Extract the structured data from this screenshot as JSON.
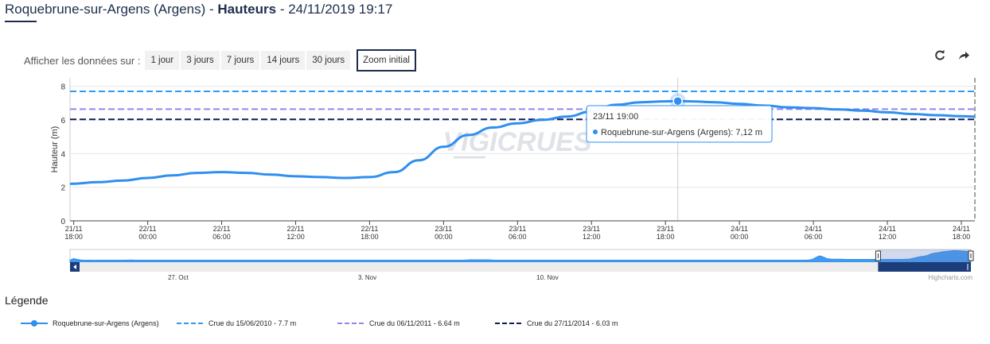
{
  "header": {
    "station": "Roquebrune-sur-Argens (Argens)",
    "sep1": " - ",
    "measure": "Hauteurs",
    "sep2": " - ",
    "datetime": "24/11/2019 19:17"
  },
  "range_selector": {
    "label": "Afficher les données sur :",
    "buttons": [
      "1 jour",
      "3 jours",
      "7 jours",
      "14 jours",
      "30 jours"
    ],
    "zoom_label": "Zoom initial"
  },
  "toolbar": {
    "refresh_icon": "refresh-icon",
    "share_icon": "share-arrow-icon"
  },
  "chart_data": {
    "type": "line",
    "ylabel": "Hauteur (m)",
    "ylim": [
      0,
      8.5
    ],
    "yticks": [
      0,
      2,
      4,
      6,
      8
    ],
    "xticks": [
      {
        "t": 0,
        "l1": "21/11",
        "l2": "18:00"
      },
      {
        "t": 6,
        "l1": "22/11",
        "l2": "00:00"
      },
      {
        "t": 12,
        "l1": "22/11",
        "l2": "06:00"
      },
      {
        "t": 18,
        "l1": "22/11",
        "l2": "12:00"
      },
      {
        "t": 24,
        "l1": "22/11",
        "l2": "18:00"
      },
      {
        "t": 30,
        "l1": "23/11",
        "l2": "00:00"
      },
      {
        "t": 36,
        "l1": "23/11",
        "l2": "06:00"
      },
      {
        "t": 42,
        "l1": "23/11",
        "l2": "12:00"
      },
      {
        "t": 48,
        "l1": "23/11",
        "l2": "18:00"
      },
      {
        "t": 54,
        "l1": "24/11",
        "l2": "00:00"
      },
      {
        "t": 60,
        "l1": "24/11",
        "l2": "06:00"
      },
      {
        "t": 66,
        "l1": "24/11",
        "l2": "12:00"
      },
      {
        "t": 72,
        "l1": "24/11",
        "l2": "18:00"
      }
    ],
    "xlim": [
      -0.3,
      73.1
    ],
    "series": [
      {
        "name": "Roquebrune-sur-Argens (Argens)",
        "color": "#2e8fef",
        "points": [
          [
            -0.3,
            2.2
          ],
          [
            2,
            2.3
          ],
          [
            4,
            2.4
          ],
          [
            6,
            2.55
          ],
          [
            8,
            2.7
          ],
          [
            10,
            2.85
          ],
          [
            12,
            2.9
          ],
          [
            14,
            2.85
          ],
          [
            16,
            2.75
          ],
          [
            18,
            2.65
          ],
          [
            20,
            2.6
          ],
          [
            22,
            2.55
          ],
          [
            24,
            2.6
          ],
          [
            26,
            2.9
          ],
          [
            28,
            3.6
          ],
          [
            30,
            4.4
          ],
          [
            32,
            5.1
          ],
          [
            34,
            5.55
          ],
          [
            36,
            5.8
          ],
          [
            38,
            6.0
          ],
          [
            40,
            6.2
          ],
          [
            42,
            6.5
          ],
          [
            44,
            6.9
          ],
          [
            46,
            7.05
          ],
          [
            48,
            7.1
          ],
          [
            49,
            7.12
          ],
          [
            50,
            7.1
          ],
          [
            52,
            7.05
          ],
          [
            54,
            6.95
          ],
          [
            56,
            6.85
          ],
          [
            58,
            6.75
          ],
          [
            60,
            6.7
          ],
          [
            62,
            6.62
          ],
          [
            64,
            6.55
          ],
          [
            66,
            6.45
          ],
          [
            68,
            6.35
          ],
          [
            70,
            6.28
          ],
          [
            72,
            6.22
          ],
          [
            73.1,
            6.2
          ]
        ]
      }
    ],
    "thresholds": [
      {
        "name": "Crue du 15/06/2010 - 7.7 m",
        "value": 7.7,
        "color": "#2e9bef"
      },
      {
        "name": "Crue du 06/11/2011 - 6.64 m",
        "value": 6.64,
        "color": "#8f87ec"
      },
      {
        "name": "Crue du 27/11/2014 - 6.03 m",
        "value": 6.03,
        "color": "#0f1b5c"
      }
    ],
    "highlight": {
      "t": 49,
      "y": 7.12
    },
    "tooltip": {
      "line1": "23/11 19:00",
      "series": "Roquebrune-sur-Argens (Argens)",
      "value": "7,12 m"
    },
    "watermark": "VIGICRUES",
    "navigator": {
      "labels": [
        {
          "text": "27. Oct",
          "pos": 0.12
        },
        {
          "text": "3. Nov",
          "pos": 0.33
        },
        {
          "text": "10. Nov",
          "pos": 0.53
        }
      ],
      "values": [
        0.55,
        0.9,
        0.7,
        0.55,
        0.5,
        0.5,
        0.5,
        0.48,
        0.5,
        0.5,
        0.5,
        0.5,
        0.5,
        0.5,
        0.5,
        0.5,
        0.52,
        0.55,
        0.5,
        0.5,
        0.5,
        0.5,
        0.5,
        0.5,
        0.5,
        0.5,
        0.5,
        0.5,
        0.5,
        0.5,
        0.5,
        0.5,
        0.5,
        0.5,
        0.5,
        0.5,
        0.5,
        0.5,
        0.5,
        0.5,
        0.5,
        0.5,
        0.5,
        0.5,
        0.5,
        0.5,
        0.5,
        0.5,
        0.5,
        0.5,
        0.5,
        0.5,
        0.5,
        0.5,
        0.5,
        0.5,
        0.5,
        0.5,
        0.5,
        0.5,
        0.5,
        0.5,
        0.5,
        0.5,
        0.5,
        0.5,
        0.5,
        0.5,
        0.5,
        0.5,
        0.5,
        0.5,
        0.5,
        0.5,
        0.5,
        0.5,
        0.5,
        0.5,
        0.5,
        0.5,
        0.5,
        0.5,
        0.5,
        0.5,
        0.5,
        0.5,
        0.5,
        0.5,
        0.5,
        0.5,
        0.5,
        0.5,
        0.5,
        0.5,
        0.5,
        0.5,
        0.5,
        0.5,
        0.5,
        0.5,
        0.5,
        0.5,
        0.5,
        0.5,
        0.5,
        0.5,
        0.5,
        0.5,
        0.5,
        0.5,
        0.55,
        0.6,
        0.6,
        0.6,
        0.6,
        0.6,
        0.6,
        0.55,
        0.5,
        0.5,
        0.5,
        0.5,
        0.5,
        0.5,
        0.5,
        0.5,
        0.5,
        0.5,
        0.5,
        0.5,
        0.5,
        0.5,
        0.5,
        0.5,
        0.5,
        0.5,
        0.5,
        0.5,
        0.5,
        0.5,
        0.5,
        0.5,
        0.5,
        0.5,
        0.5,
        0.5,
        0.5,
        0.5,
        0.5,
        0.5,
        0.5,
        0.5,
        0.5,
        0.5,
        0.5,
        0.5,
        0.5,
        0.5,
        0.5,
        0.5,
        0.5,
        0.5,
        0.5,
        0.5,
        0.5,
        0.5,
        0.5,
        0.5,
        0.5,
        0.5,
        0.5,
        0.5,
        0.5,
        0.5,
        0.5,
        0.5,
        0.5,
        0.5,
        0.5,
        0.5,
        0.5,
        0.5,
        0.5,
        0.5,
        0.5,
        0.5,
        0.5,
        0.5,
        0.5,
        0.5,
        0.5,
        0.5,
        0.5,
        0.5,
        0.5,
        0.5,
        0.5,
        0.5,
        0.5,
        0.5,
        0.5,
        0.5,
        0.5,
        0.5,
        0.5,
        0.55,
        0.7,
        1.2,
        1.6,
        1.3,
        0.9,
        0.8,
        0.75,
        0.75,
        0.75,
        0.7,
        0.7,
        0.7,
        0.7,
        0.7,
        0.7,
        0.7,
        0.7,
        0.7,
        0.7,
        0.7,
        0.7,
        0.7,
        0.7,
        0.7,
        0.7,
        0.7,
        0.75,
        0.8,
        1.0,
        1.2,
        1.4,
        1.5,
        1.7,
        2.1,
        2.3,
        2.4,
        2.6,
        2.7,
        2.8,
        2.9,
        2.9,
        2.85,
        2.8,
        2.7,
        2.6
      ],
      "ymax": 3.2,
      "window_start": 0.897
    },
    "credit": "Highcharts.com"
  },
  "legend": {
    "title": "Légende",
    "items": [
      {
        "label": "Roquebrune-sur-Argens (Argens)",
        "color": "#2e8fef",
        "style": "marker"
      },
      {
        "label": "Crue du 15/06/2010 - 7.7 m",
        "color": "#2e9bef",
        "style": "dash"
      },
      {
        "label": "Crue du 06/11/2011 - 6.64 m",
        "color": "#8f87ec",
        "style": "dash"
      },
      {
        "label": "Crue du 27/11/2014 - 6.03 m",
        "color": "#0f1b5c",
        "style": "dash"
      }
    ]
  }
}
